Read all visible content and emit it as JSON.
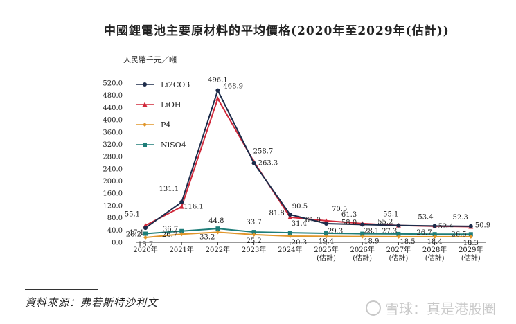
{
  "chart_data": {
    "type": "line",
    "title": "中國鋰電池主要原材料的平均價格(2020年至2029年(估計))",
    "ylabel": "人民幣千元／噸",
    "categories": [
      "2020年",
      "2021年",
      "2022年",
      "2023年",
      "2024年",
      "2025年\n(估計)",
      "2026年\n(估計)",
      "2027年\n(估計)",
      "2028年\n(估計)",
      "2029年\n(估計)"
    ],
    "y_ticks": [
      "520.0",
      "480.0",
      "440.0",
      "400.0",
      "360.0",
      "320.0",
      "280.0",
      "240.0",
      "200.0",
      "160.0",
      "120.0",
      "80.0",
      "40.0",
      "0.0"
    ],
    "ylim": [
      0,
      520
    ],
    "legend_position": "top-left",
    "series": [
      {
        "name": "Li2CO3",
        "color": "#1c2b4a",
        "marker": "circle",
        "values": [
          47.1,
          131.1,
          496.1,
          258.7,
          90.5,
          61.0,
          58.0,
          55.2,
          53.4,
          52.3
        ]
      },
      {
        "name": "LiOH",
        "color": "#d0283a",
        "marker": "triangle",
        "values": [
          55.1,
          116.1,
          468.9,
          263.3,
          81.8,
          70.5,
          61.3,
          55.1,
          52.4,
          50.9
        ]
      },
      {
        "name": "P4",
        "color": "#e0952a",
        "marker": "diamond",
        "values": [
          15.7,
          26.7,
          33.2,
          25.2,
          20.3,
          19.4,
          18.9,
          18.5,
          18.4,
          18.3
        ]
      },
      {
        "name": "NiSO4",
        "color": "#1e7d78",
        "marker": "square",
        "values": [
          28.2,
          36.7,
          44.8,
          33.7,
          31.4,
          29.3,
          28.1,
          27.3,
          26.7,
          26.5
        ]
      }
    ]
  },
  "source": "資料來源：弗若斯特沙利文",
  "watermark": "雪球：真是港股圈"
}
